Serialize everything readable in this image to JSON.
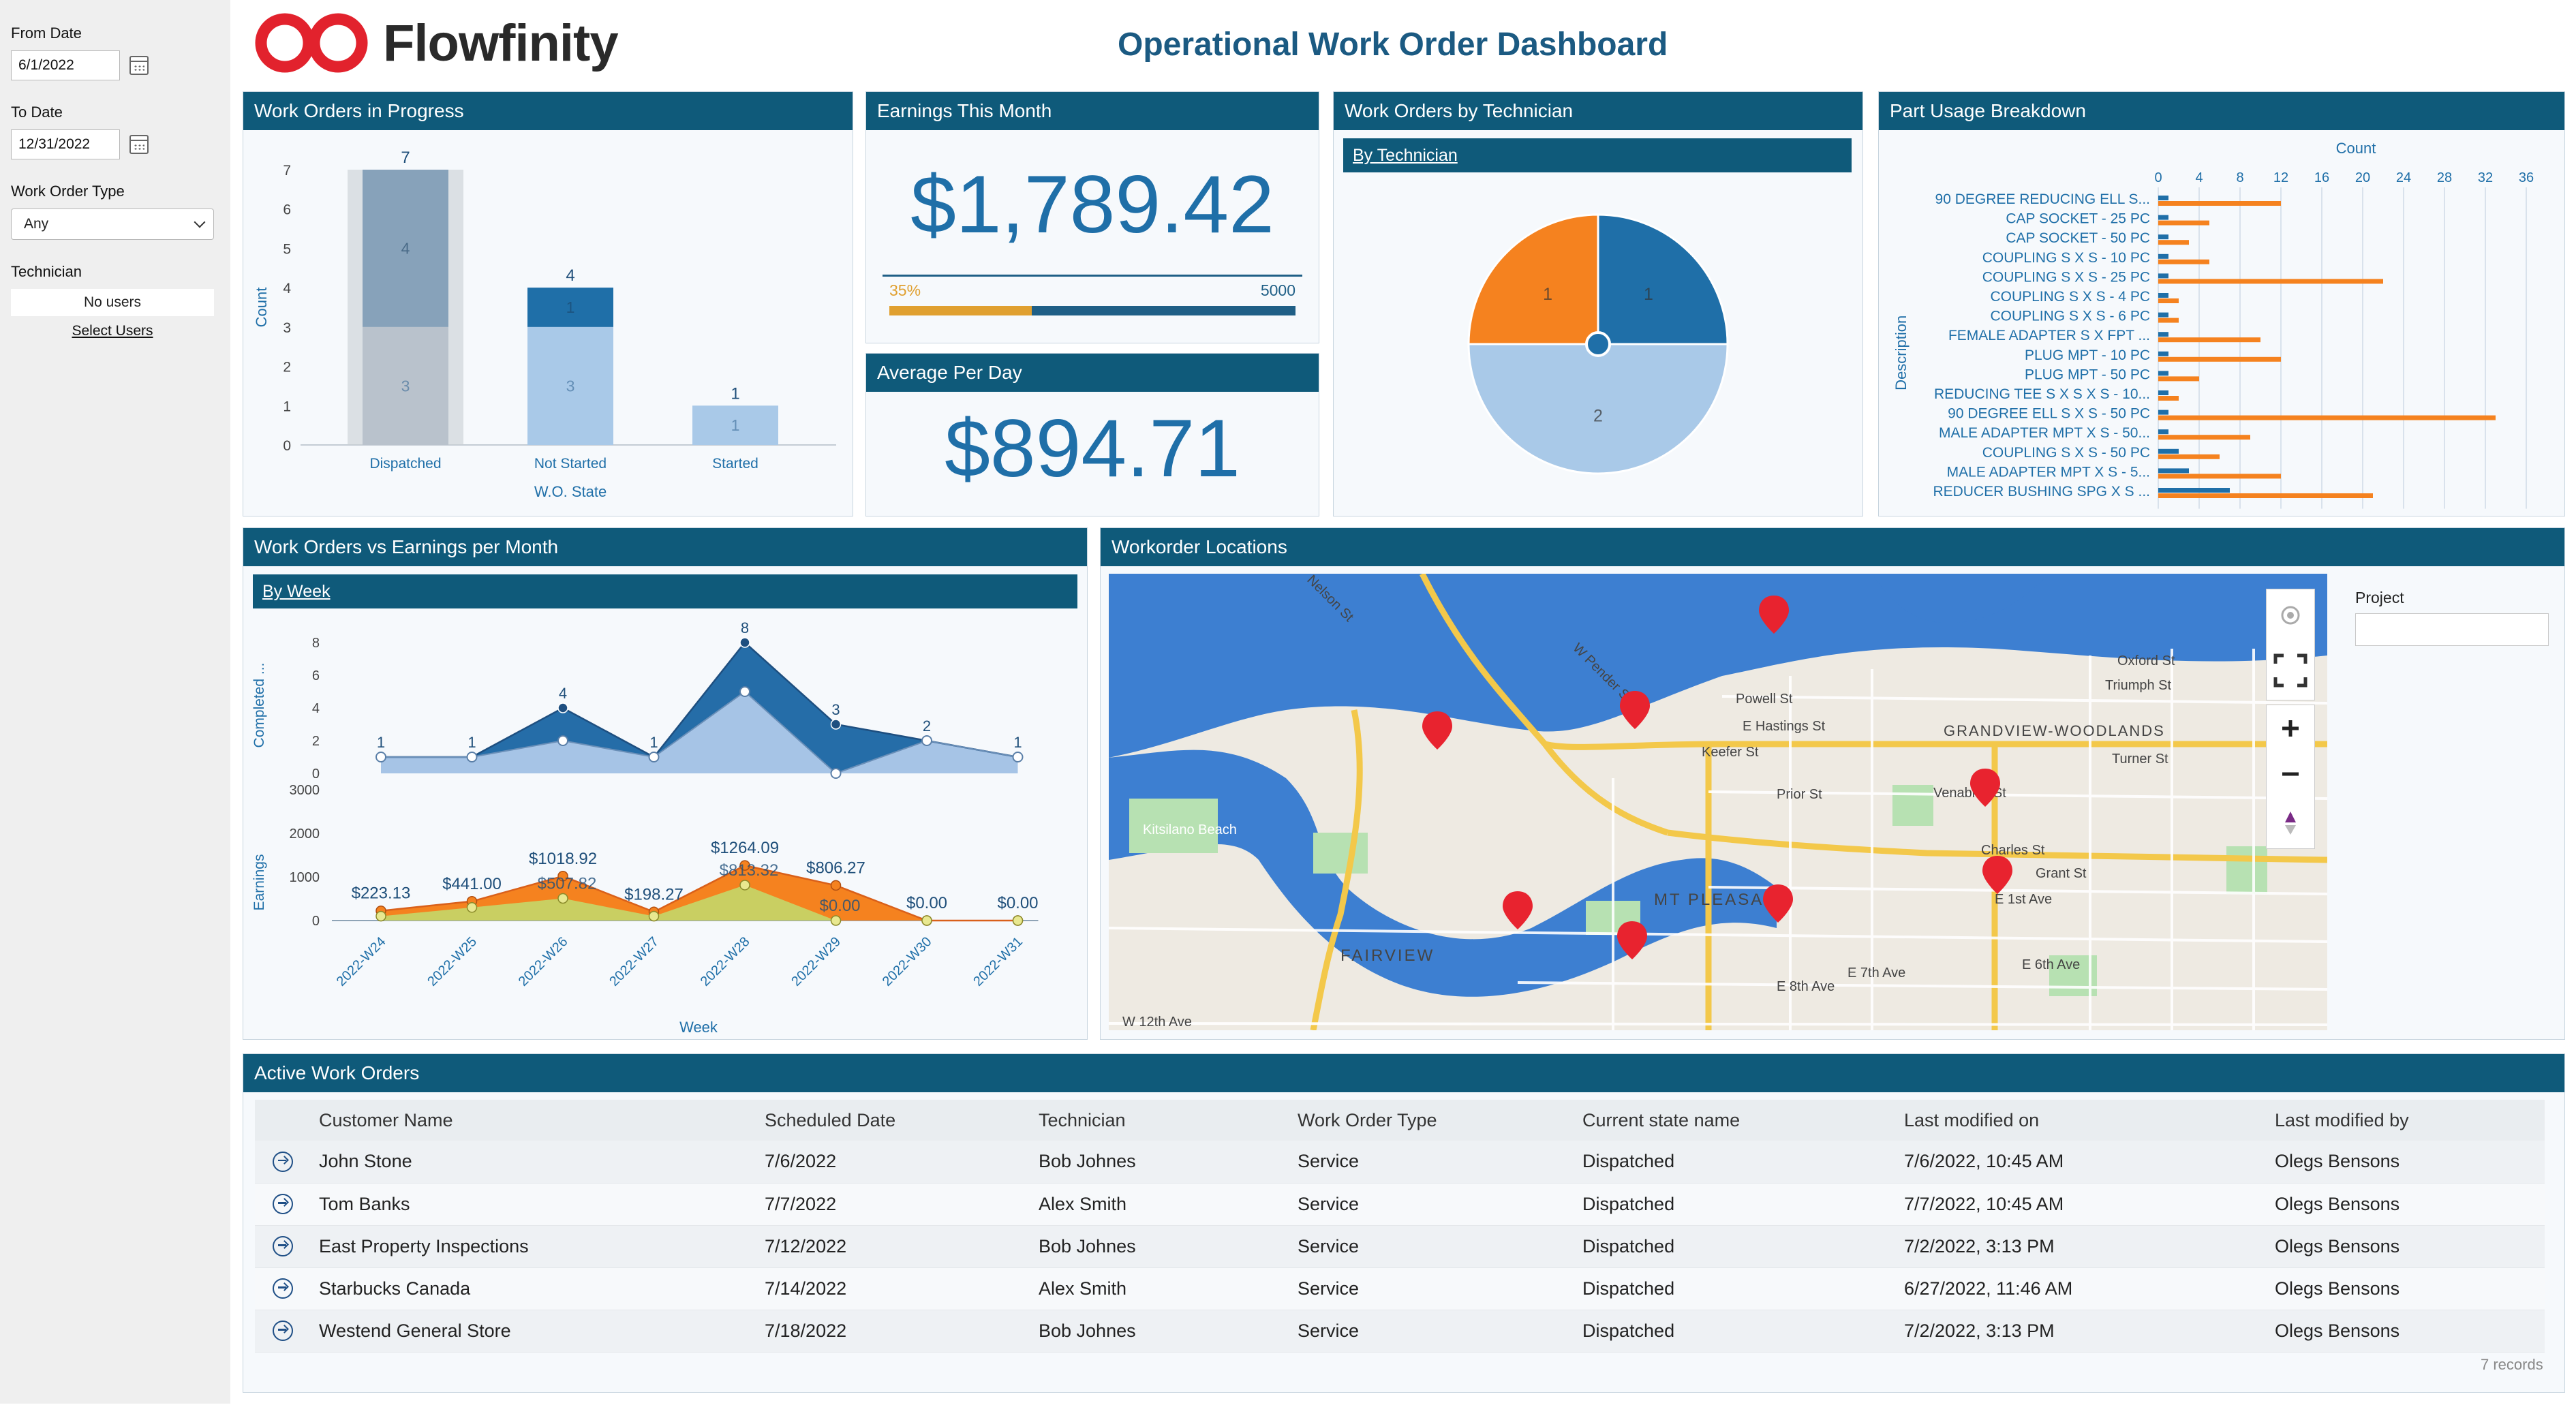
{
  "header": {
    "brand": "Flowfinity",
    "title": "Operational Work Order Dashboard"
  },
  "filters": {
    "from_date_label": "From Date",
    "from_date_value": "6/1/2022",
    "to_date_label": "To Date",
    "to_date_value": "12/31/2022",
    "work_order_type_label": "Work Order Type",
    "work_order_type_value": "Any",
    "technician_label": "Technician",
    "technician_value": "No users",
    "select_users_link": "Select Users"
  },
  "panels": {
    "in_progress": {
      "title": "Work Orders in Progress",
      "ylabel": "Count",
      "xlabel": "W.O. State"
    },
    "earnings_month": {
      "title": "Earnings This Month",
      "value": "$1,789.42",
      "progress_label": "35%",
      "progress_max": "5000",
      "progress_fraction": 0.35
    },
    "average_day": {
      "title": "Average Per Day",
      "value": "$894.71"
    },
    "by_technician": {
      "title": "Work Orders by Technician",
      "sub_link": "By Technician"
    },
    "part_usage": {
      "title": "Part Usage Breakdown",
      "axis_title": "Count",
      "ylabel": "Description"
    },
    "vs_earnings": {
      "title": "Work Orders vs Earnings per Month",
      "sub_link": "By Week",
      "ylabel_top": "Completed ...",
      "ylabel_bottom": "Earnings",
      "xlabel": "Week"
    },
    "locations": {
      "title": "Workorder Locations",
      "project_label": "Project"
    },
    "active": {
      "title": "Active Work Orders",
      "records": "7 records"
    }
  },
  "chart_data": [
    {
      "type": "bar",
      "title": "Work Orders in Progress",
      "categories": [
        "Dispatched",
        "Not Started",
        "Started"
      ],
      "series": [
        {
          "values": [
            3,
            3,
            1
          ],
          "color": "#a9c9e8"
        },
        {
          "values": [
            4,
            1,
            0
          ],
          "color": "#1f6fa8"
        }
      ],
      "totals": [
        7,
        4,
        1
      ],
      "ylim": [
        0,
        7
      ],
      "yticks": [
        0,
        1,
        2,
        3,
        4,
        5,
        6,
        7
      ]
    },
    {
      "type": "pie",
      "title": "Work Orders by Technician",
      "slices": [
        {
          "value": 1,
          "color": "#1f6fa8"
        },
        {
          "value": 2,
          "color": "#a9c9e8"
        },
        {
          "value": 1,
          "color": "#f5821f"
        }
      ]
    },
    {
      "type": "bar",
      "title": "Part Usage Breakdown",
      "orientation": "horizontal",
      "categories": [
        "90 DEGREE REDUCING ELL S...",
        "CAP SOCKET - 25 PC",
        "CAP SOCKET - 50 PC",
        "COUPLING S X S - 10 PC",
        "COUPLING S X S - 25 PC",
        "COUPLING S X S - 4 PC",
        "COUPLING S X S - 6 PC",
        "FEMALE ADAPTER S X FPT ...",
        "PLUG MPT - 10 PC",
        "PLUG MPT - 50 PC",
        "REDUCING TEE S X S X S - 10...",
        "90 DEGREE ELL S X S - 50 PC",
        "MALE ADAPTER MPT X S - 50...",
        "COUPLING S X S - 50 PC",
        "MALE ADAPTER MPT X S - 5...",
        "REDUCER BUSHING SPG X S ..."
      ],
      "series": [
        {
          "values": [
            1,
            1,
            1,
            1,
            1,
            1,
            1,
            1,
            1,
            1,
            1,
            1,
            1,
            2,
            3,
            7
          ],
          "color": "#1f6fa8"
        },
        {
          "values": [
            12,
            5,
            3,
            5,
            22,
            2,
            2,
            10,
            12,
            4,
            2,
            33,
            9,
            6,
            12,
            21
          ],
          "color": "#f5821f"
        }
      ],
      "xlim": [
        0,
        38
      ],
      "xticks": [
        0,
        4,
        8,
        12,
        16,
        20,
        24,
        28,
        32,
        36
      ]
    },
    {
      "type": "area",
      "title": "Work Orders vs Earnings per Month",
      "categories": [
        "2022-W24",
        "2022-W25",
        "2022-W26",
        "2022-W27",
        "2022-W28",
        "2022-W29",
        "2022-W30",
        "2022-W31"
      ],
      "completed_total": [
        1,
        1,
        4,
        1,
        8,
        3,
        2,
        1
      ],
      "completed_light": [
        1,
        1,
        2,
        1,
        5,
        0,
        2,
        1
      ],
      "ylim_top": [
        0,
        8
      ],
      "yticks_top": [
        0,
        2,
        4,
        6,
        8
      ],
      "earnings_total": [
        223.13,
        441.0,
        1018.92,
        198.27,
        1264.09,
        806.27,
        0.0,
        0.0
      ],
      "earnings_light": [
        100,
        300,
        507.82,
        100,
        813.32,
        0.0,
        0.0,
        0.0
      ],
      "earnings_labels": [
        "$223.13",
        "$441.00",
        "$1018.92",
        "$198.27",
        "$1264.09",
        "$806.27",
        "$0.00",
        "$0.00"
      ],
      "earnings_inner_labels": [
        "",
        "",
        "$507.82",
        "",
        "$813.32",
        "$0.00",
        "",
        ""
      ],
      "ylim_bottom": [
        0,
        3000
      ],
      "yticks_bottom": [
        0,
        1000,
        2000,
        3000
      ]
    }
  ],
  "table": {
    "columns": [
      "Customer Name",
      "Scheduled Date",
      "Technician",
      "Work Order Type",
      "Current state name",
      "Last modified on",
      "Last modified by"
    ],
    "rows": [
      [
        "John Stone",
        "7/6/2022",
        "Bob Johnes",
        "Service",
        "Dispatched",
        "7/6/2022, 10:45 AM",
        "Olegs Bensons"
      ],
      [
        "Tom Banks",
        "7/7/2022",
        "Alex Smith",
        "Service",
        "Dispatched",
        "7/7/2022, 10:45 AM",
        "Olegs Bensons"
      ],
      [
        "East Property Inspections",
        "7/12/2022",
        "Bob Johnes",
        "Service",
        "Dispatched",
        "7/2/2022, 3:13 PM",
        "Olegs Bensons"
      ],
      [
        "Starbucks Canada",
        "7/14/2022",
        "Alex Smith",
        "Service",
        "Dispatched",
        "6/27/2022, 11:46 AM",
        "Olegs Bensons"
      ],
      [
        "Westend General Store",
        "7/18/2022",
        "Bob Johnes",
        "Service",
        "Dispatched",
        "7/2/2022, 3:13 PM",
        "Olegs Bensons"
      ]
    ]
  },
  "map": {
    "labels": [
      "FAIRVIEW",
      "MT PLEASANT",
      "GRANDVIEW-WOODLANDS",
      "Kitsilano Beach",
      "Powell St",
      "E Hastings St",
      "Keefer St",
      "Prior St",
      "Venables St",
      "Charles St",
      "Grant St",
      "E 1st Ave",
      "Oxford St",
      "Triumph St",
      "Turner St",
      "E 8th Ave",
      "E 7th Ave",
      "E 6th Ave",
      "W 12th Ave",
      "W Pender St",
      "Nelson St"
    ],
    "pin_color": "#e8232f",
    "ctrl_icons": [
      "locate-icon",
      "fullscreen-icon",
      "zoom-in-icon",
      "zoom-out-icon",
      "compass-icon"
    ]
  }
}
